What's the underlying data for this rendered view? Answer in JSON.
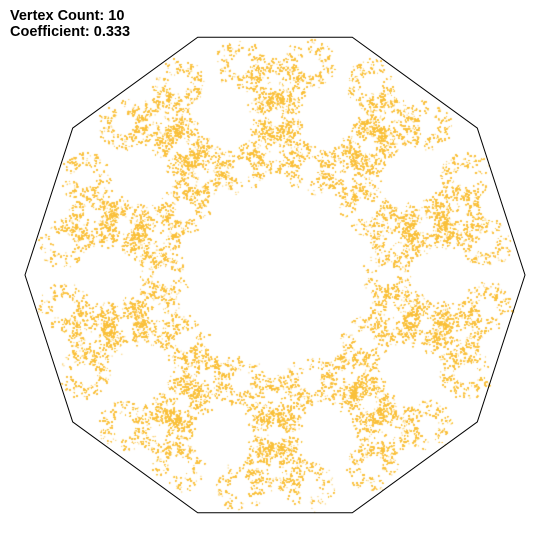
{
  "info": {
    "vertex_count_label": "Vertex Count: 10",
    "coefficient_label": "Coefficient: 0.333"
  },
  "chaos_game": {
    "vertex_count": 10,
    "coefficient": 0.333,
    "point_color": "#f9c03d",
    "polygon_stroke": "#000000",
    "background": "#ffffff"
  }
}
